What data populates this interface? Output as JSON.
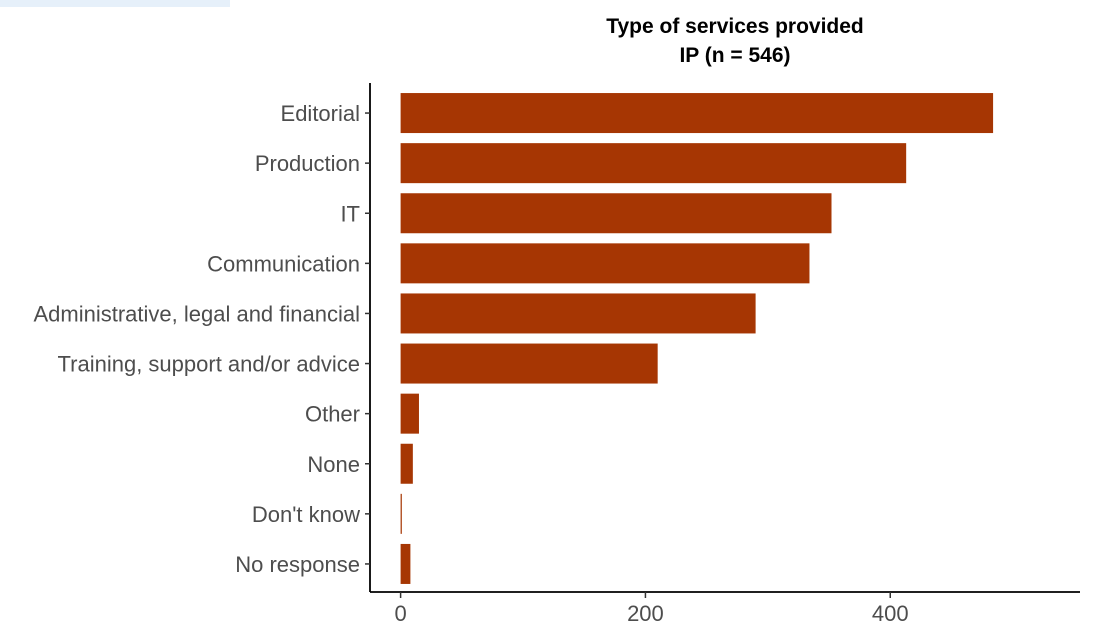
{
  "chart_data": {
    "type": "bar",
    "orientation": "horizontal",
    "title": "Type of services provided",
    "subtitle": "IP (n = 546)",
    "xlabel": "",
    "ylabel": "",
    "categories": [
      "Editorial",
      "Production",
      "IT",
      "Communication",
      "Administrative, legal and financial",
      "Training, support and/or advice",
      "Other",
      "None",
      "Don't know",
      "No response"
    ],
    "values": [
      484,
      413,
      352,
      334,
      290,
      210,
      15,
      10,
      1,
      8
    ],
    "xlim": [
      -25,
      555
    ],
    "xticks": [
      0,
      200,
      400
    ],
    "xtick_labels": [
      "0",
      "200",
      "400"
    ],
    "grid": false,
    "bar_color": "#a63603"
  }
}
